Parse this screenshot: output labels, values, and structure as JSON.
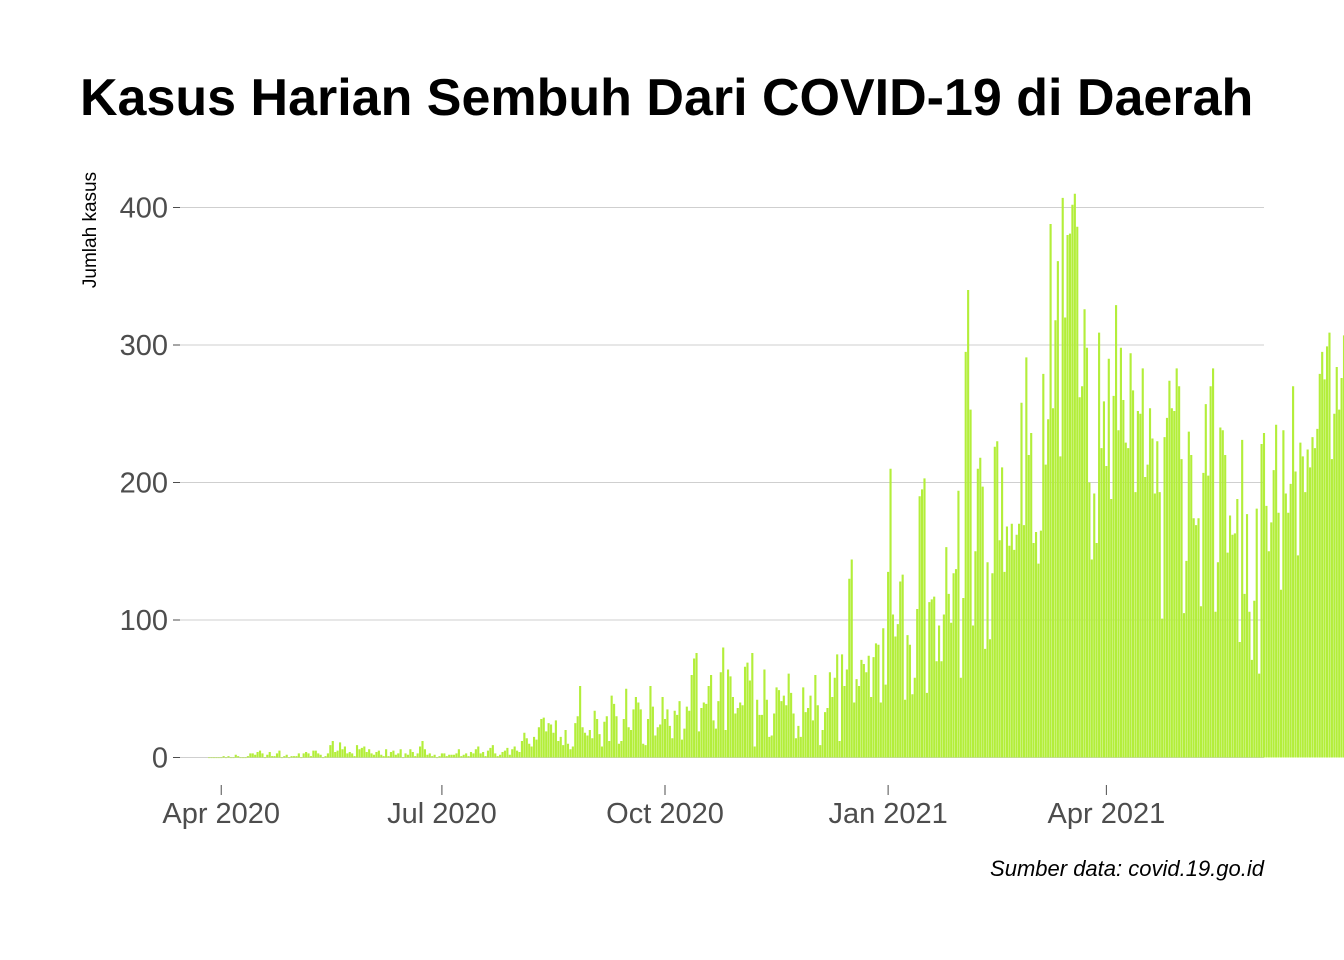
{
  "chart_data": {
    "type": "bar",
    "title": "Kasus Harian Sembuh Dari COVID-19 di Daerah",
    "ylabel": "Jumlah kasus",
    "xlabel": "",
    "caption": "Sumber data: covid.19.go.id",
    "x_start": "2020-03-15",
    "x_end": "2021-06-05",
    "ylim": [
      -20,
      420
    ],
    "y_ticks": [
      0,
      100,
      200,
      300,
      400
    ],
    "x_ticks": [
      {
        "date": "2020-04-01",
        "label": "Apr 2020"
      },
      {
        "date": "2020-07-01",
        "label": "Jul 2020"
      },
      {
        "date": "2020-10-01",
        "label": "Oct 2020"
      },
      {
        "date": "2021-01-01",
        "label": "Jan 2021"
      },
      {
        "date": "2021-04-01",
        "label": "Apr 2021"
      }
    ],
    "grid": true,
    "bar_color": "#b3ee3a",
    "series": [
      {
        "start_date": "2020-03-27",
        "values": [
          0,
          0,
          0,
          0,
          0,
          0,
          1,
          0,
          1,
          0,
          0,
          2,
          1,
          0,
          0,
          0,
          1,
          3,
          3,
          2,
          4,
          5,
          3,
          0,
          2,
          4,
          1,
          1,
          3,
          5,
          0,
          1,
          2,
          0,
          1,
          1,
          1,
          3,
          0,
          3,
          4,
          3,
          1,
          5,
          5,
          3,
          2,
          0,
          1,
          3,
          9,
          12,
          4,
          5,
          11,
          6,
          8,
          3,
          4,
          3,
          1,
          9,
          6,
          7,
          8,
          4,
          6,
          3,
          2,
          4,
          5,
          2,
          1,
          6,
          1,
          4,
          5,
          2,
          3,
          6,
          0,
          3,
          2,
          6,
          4,
          1,
          3,
          8,
          12,
          6,
          2,
          3,
          1,
          2,
          0,
          1,
          3,
          3,
          1,
          2,
          2,
          2,
          3,
          6,
          1,
          2,
          3,
          1,
          4,
          3,
          6,
          8,
          3,
          4,
          1,
          5,
          7,
          9,
          3,
          1,
          2,
          4,
          5,
          7,
          2,
          6,
          8,
          5,
          4,
          12,
          18,
          14,
          10,
          8,
          15,
          13,
          22,
          28,
          29,
          19,
          25,
          24,
          18,
          27,
          12,
          15,
          9,
          20,
          10,
          6,
          8,
          25,
          30,
          52,
          22,
          18,
          16,
          20,
          14,
          34,
          28,
          17,
          8,
          26,
          30,
          12,
          45,
          39,
          30,
          10,
          12,
          28,
          50,
          22,
          20,
          35,
          44,
          40,
          35,
          10,
          9,
          28,
          52,
          37,
          16,
          22,
          24,
          44,
          28,
          35,
          23,
          14,
          34,
          31,
          41,
          13,
          21,
          37,
          34,
          60,
          72,
          76,
          19,
          36,
          40,
          39,
          52,
          60,
          27,
          21,
          41,
          62,
          80,
          20,
          64,
          59,
          44,
          32,
          36,
          40,
          38,
          66,
          69,
          56,
          76,
          8,
          42,
          31,
          31,
          64,
          42,
          15,
          16,
          32,
          51,
          49,
          41,
          45,
          38,
          61,
          47,
          32,
          14,
          23,
          15,
          51,
          33,
          36,
          45,
          27,
          60,
          38,
          9,
          20,
          33,
          36,
          62,
          44,
          58,
          75,
          12,
          75,
          52,
          64,
          130,
          144,
          40,
          57,
          52,
          71,
          68,
          62,
          74,
          44,
          73,
          83,
          82,
          40,
          94,
          53,
          135,
          210,
          104,
          88,
          97,
          128,
          133,
          42,
          89,
          82,
          46,
          58,
          108,
          190,
          195,
          203,
          47,
          113,
          115,
          117,
          70,
          96,
          70,
          104,
          153,
          119,
          98,
          134,
          137,
          194,
          58,
          116,
          295,
          340,
          253,
          96,
          150,
          210,
          218,
          197,
          79,
          142,
          86,
          134,
          226,
          230,
          158,
          211,
          135,
          168,
          154,
          170,
          151,
          162,
          170,
          258,
          169,
          291,
          220,
          236,
          156,
          164,
          141,
          165,
          279,
          213,
          246,
          388,
          254,
          318,
          361,
          219,
          407,
          320,
          380,
          381,
          402,
          410,
          386,
          262,
          270,
          326,
          298,
          200,
          144,
          192,
          156,
          309,
          225,
          259,
          212,
          290,
          188,
          263,
          329,
          238,
          298,
          260,
          229,
          225,
          294,
          267,
          193,
          252,
          250,
          283,
          204,
          213,
          254,
          232,
          192,
          230,
          193,
          101,
          233,
          247,
          274,
          254,
          252,
          283,
          270,
          217,
          105,
          143,
          237,
          220,
          174,
          169,
          174,
          110,
          207,
          257,
          205,
          270,
          283,
          106,
          142,
          240,
          238,
          220,
          149,
          176,
          162,
          163,
          188,
          84,
          231,
          119,
          177,
          106,
          71,
          114,
          181,
          61,
          228,
          236,
          183,
          150,
          171,
          209,
          242,
          178,
          122,
          238,
          192,
          178,
          199,
          270,
          208,
          147,
          229,
          219,
          193,
          224,
          211,
          233,
          225,
          239,
          279,
          295,
          275,
          299,
          309,
          217,
          250,
          284,
          253,
          276,
          307,
          272,
          256,
          208,
          329,
          248,
          190,
          207,
          270,
          299,
          277,
          246,
          291,
          190,
          272,
          234,
          172,
          209,
          231,
          327,
          158,
          152,
          171,
          216,
          234,
          194,
          213,
          186,
          266,
          203,
          220,
          191,
          191,
          204,
          171,
          170,
          167,
          141
        ]
      }
    ]
  }
}
